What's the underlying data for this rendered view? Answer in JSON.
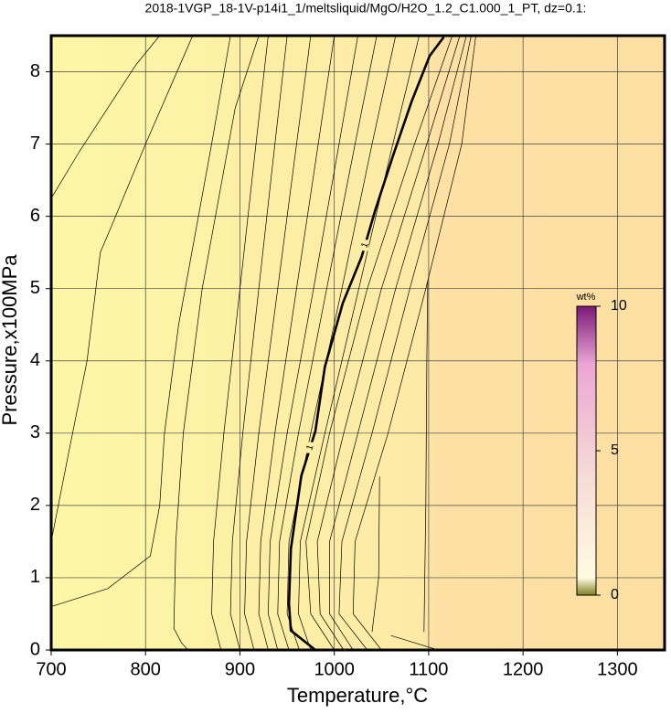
{
  "chart_data": {
    "type": "contour",
    "title": "2018-1VGP_18-1V-p14i1_1/meltsliquid/MgO/H2O_1.2_C1.000_1_PT, dz=0.1:",
    "xlabel": "Temperature,°C",
    "ylabel": "Pressure,x100MPa",
    "xlim": [
      700,
      1350
    ],
    "ylim": [
      0,
      8.5
    ],
    "xticks": [
      700,
      800,
      900,
      1000,
      1100,
      1200,
      1300
    ],
    "yticks": [
      0,
      1,
      2,
      3,
      4,
      5,
      6,
      7,
      8
    ],
    "grid": true,
    "line_color": "#000000",
    "contours": [
      {
        "x": [
          700,
          730,
          765,
          790,
          815
        ],
        "y": [
          6.25,
          6.9,
          7.6,
          8.1,
          8.5
        ]
      },
      {
        "x": [
          700,
          715,
          738,
          752,
          765,
          800,
          840,
          850
        ],
        "y": [
          1.5,
          2.5,
          4.0,
          5.5,
          5.9,
          7.0,
          8.2,
          8.5
        ]
      },
      {
        "x": [
          700,
          760,
          805,
          815,
          820,
          835,
          870,
          890
        ],
        "y": [
          0.6,
          0.85,
          1.3,
          2.0,
          3.0,
          4.5,
          7.0,
          8.5
        ]
      },
      {
        "x": [
          845,
          838,
          830,
          832,
          840,
          860,
          895,
          920
        ],
        "y": [
          0,
          0.1,
          0.3,
          1.5,
          3.0,
          5.0,
          7.5,
          8.5
        ]
      },
      {
        "x": [
          880,
          870,
          872,
          883,
          900,
          917,
          930
        ],
        "y": [
          0,
          0.5,
          1.5,
          3,
          5,
          7,
          8.5
        ]
      },
      {
        "x": [
          900,
          890,
          892,
          903,
          920,
          937,
          950
        ],
        "y": [
          0,
          0.5,
          1.5,
          3,
          5,
          7,
          8.5
        ]
      },
      {
        "x": [
          915,
          905,
          907,
          920,
          940,
          960,
          975
        ],
        "y": [
          0,
          0.5,
          1.5,
          3,
          5,
          7,
          8.5
        ]
      },
      {
        "x": [
          930,
          920,
          922,
          937,
          960,
          983,
          1000
        ],
        "y": [
          0,
          0.5,
          1.5,
          3,
          5,
          7,
          8.5
        ]
      },
      {
        "x": [
          940,
          930,
          932,
          950,
          978,
          1005,
          1025
        ],
        "y": [
          0,
          0.5,
          1.5,
          3,
          5,
          7,
          8.5
        ]
      },
      {
        "x": [
          952,
          940,
          942,
          962,
          992,
          1022,
          1045
        ],
        "y": [
          0,
          0.5,
          1.5,
          3,
          5,
          7,
          8.5
        ]
      },
      {
        "x": [
          963,
          950,
          952,
          975,
          1008,
          1040,
          1065
        ],
        "y": [
          0,
          0.5,
          1.5,
          3,
          5,
          7,
          8.5
        ]
      },
      {
        "x": [
          975,
          962,
          964,
          990,
          1026,
          1062,
          1090
        ],
        "y": [
          0,
          0.5,
          1.5,
          3,
          5,
          7,
          8.5
        ]
      },
      {
        "x": [
          980,
          954,
          952,
          954,
          965,
          980,
          990,
          1009,
          1029,
          1043,
          1062,
          1082,
          1101,
          1116
        ],
        "y": [
          0,
          0.27,
          0.64,
          1.4,
          2.41,
          3.03,
          3.92,
          4.8,
          5.44,
          6.07,
          6.83,
          7.59,
          8.22,
          8.48
        ],
        "level": 1,
        "bold": true,
        "label_y": [
          2.8,
          5.6
        ]
      },
      {
        "x": [
          1000,
          975,
          970,
          995,
          1035,
          1085,
          1125
        ],
        "y": [
          0,
          0.5,
          1.5,
          3,
          5,
          7,
          8.5
        ]
      },
      {
        "x": [
          1010,
          985,
          982,
          1010,
          1050,
          1098,
          1133
        ],
        "y": [
          0,
          0.5,
          1.5,
          3,
          5,
          7,
          8.5
        ]
      },
      {
        "x": [
          1020,
          995,
          995,
          1025,
          1065,
          1110,
          1140
        ],
        "y": [
          0,
          0.5,
          1.5,
          3,
          5,
          7,
          8.5
        ]
      },
      {
        "x": [
          1035,
          1005,
          1008,
          1040,
          1080,
          1122,
          1145
        ],
        "y": [
          0,
          0.5,
          1.5,
          3,
          5,
          7,
          8.5
        ]
      },
      {
        "x": [
          1050,
          1020,
          1022,
          1057,
          1097,
          1135,
          1150
        ],
        "y": [
          0,
          0.5,
          1.5,
          3,
          5,
          7,
          8.5
        ]
      },
      {
        "x": [
          1040,
          1047,
          1048
        ],
        "y": [
          0.25,
          1.0,
          2.4
        ]
      },
      {
        "x": [
          1095,
          1097,
          1098,
          1099
        ],
        "y": [
          0.25,
          2,
          4,
          5.1
        ]
      },
      {
        "x": [
          1060,
          1085,
          1110
        ],
        "y": [
          0.2,
          0.1,
          0
        ]
      }
    ],
    "colorbar": {
      "label": "wt%",
      "lim": [
        0,
        10
      ],
      "ticks": [
        0,
        5,
        10
      ]
    }
  }
}
